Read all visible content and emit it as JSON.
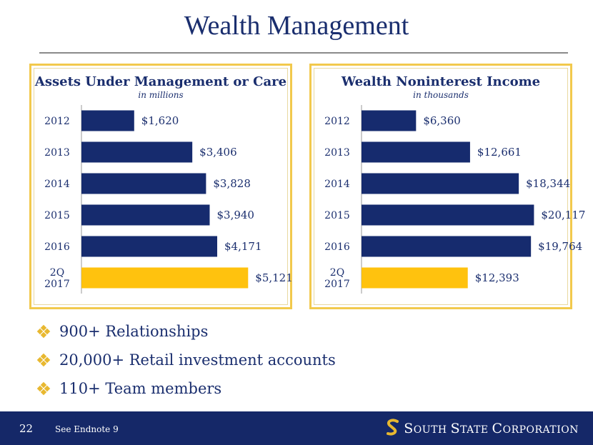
{
  "page": {
    "title": "Wealth Management",
    "bullets": [
      "900+ Relationships",
      "20,000+ Retail investment accounts",
      "110+ Team members"
    ],
    "page_number": "22",
    "endnote": "See Endnote 9",
    "brand": "South State Corporation",
    "colors": {
      "navy": "#162b6e",
      "gold": "#ffc20e",
      "border": "#f2c94c"
    }
  },
  "chart_data": [
    {
      "type": "bar",
      "orientation": "horizontal",
      "title": "Assets Under Management or Care",
      "subtitle": "in millions",
      "categories": [
        "2012",
        "2013",
        "2014",
        "2015",
        "2016",
        "2Q 2017"
      ],
      "values": [
        1620,
        3406,
        3828,
        3940,
        4171,
        5121
      ],
      "labels": [
        "$1,620",
        "$3,406",
        "$3,828",
        "$3,940",
        "$4,171",
        "$5,121"
      ],
      "highlight_index": 5,
      "xlim": [
        0,
        5400
      ],
      "grid": false
    },
    {
      "type": "bar",
      "orientation": "horizontal",
      "title": "Wealth Noninterest Income",
      "subtitle": "in thousands",
      "categories": [
        "2012",
        "2013",
        "2014",
        "2015",
        "2016",
        "2Q 2017"
      ],
      "values": [
        6360,
        12661,
        18344,
        20117,
        19764,
        12393
      ],
      "labels": [
        "$6,360",
        "$12,661",
        "$18,344",
        "$20,117",
        "$19,764",
        "$12,393"
      ],
      "highlight_index": 5,
      "xlim": [
        0,
        20500
      ],
      "grid": false
    }
  ]
}
